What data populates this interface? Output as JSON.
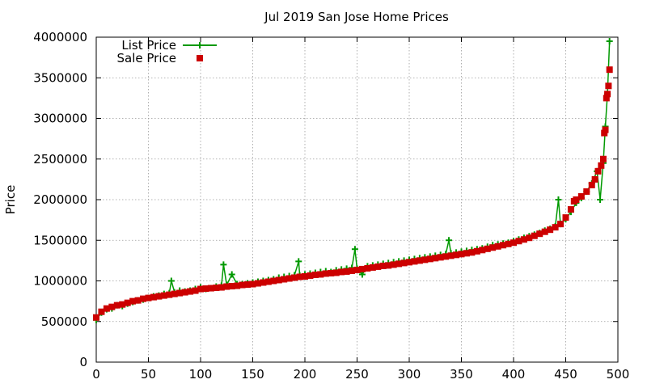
{
  "chart_data": {
    "type": "line",
    "title": "Jul 2019 San Jose Home Prices",
    "xlabel": "",
    "ylabel": "Price",
    "xlim": [
      0,
      500
    ],
    "ylim": [
      0,
      4000000
    ],
    "xticks": [
      0,
      50,
      100,
      150,
      200,
      250,
      300,
      350,
      400,
      450,
      500
    ],
    "yticks": [
      0,
      500000,
      1000000,
      1500000,
      2000000,
      2500000,
      3000000,
      3500000,
      4000000
    ],
    "grid": true,
    "legend_position": "top-left",
    "colors": {
      "list_price": "#009900",
      "sale_price": "#cc0000"
    },
    "series": [
      {
        "name": "List Price",
        "style": "line with plus markers",
        "points": [
          [
            0,
            520000
          ],
          [
            5,
            610000
          ],
          [
            10,
            650000
          ],
          [
            15,
            660000
          ],
          [
            20,
            700000
          ],
          [
            25,
            690000
          ],
          [
            30,
            720000
          ],
          [
            35,
            740000
          ],
          [
            40,
            760000
          ],
          [
            45,
            770000
          ],
          [
            50,
            790000
          ],
          [
            55,
            810000
          ],
          [
            60,
            820000
          ],
          [
            65,
            840000
          ],
          [
            70,
            850000
          ],
          [
            72,
            1000000
          ],
          [
            75,
            860000
          ],
          [
            80,
            880000
          ],
          [
            85,
            870000
          ],
          [
            90,
            880000
          ],
          [
            95,
            900000
          ],
          [
            100,
            920000
          ],
          [
            105,
            900000
          ],
          [
            110,
            910000
          ],
          [
            115,
            930000
          ],
          [
            120,
            940000
          ],
          [
            122,
            1200000
          ],
          [
            125,
            950000
          ],
          [
            130,
            1080000
          ],
          [
            135,
            960000
          ],
          [
            140,
            960000
          ],
          [
            145,
            970000
          ],
          [
            150,
            980000
          ],
          [
            155,
            990000
          ],
          [
            160,
            1000000
          ],
          [
            165,
            1010000
          ],
          [
            170,
            1020000
          ],
          [
            175,
            1040000
          ],
          [
            180,
            1050000
          ],
          [
            185,
            1060000
          ],
          [
            190,
            1070000
          ],
          [
            194,
            1240000
          ],
          [
            195,
            1070000
          ],
          [
            200,
            1080000
          ],
          [
            205,
            1090000
          ],
          [
            210,
            1100000
          ],
          [
            215,
            1110000
          ],
          [
            220,
            1120000
          ],
          [
            225,
            1110000
          ],
          [
            230,
            1130000
          ],
          [
            235,
            1140000
          ],
          [
            240,
            1150000
          ],
          [
            245,
            1160000
          ],
          [
            248,
            1390000
          ],
          [
            250,
            1150000
          ],
          [
            255,
            1080000
          ],
          [
            260,
            1180000
          ],
          [
            265,
            1190000
          ],
          [
            270,
            1200000
          ],
          [
            275,
            1210000
          ],
          [
            280,
            1220000
          ],
          [
            285,
            1230000
          ],
          [
            290,
            1240000
          ],
          [
            295,
            1250000
          ],
          [
            300,
            1260000
          ],
          [
            305,
            1270000
          ],
          [
            310,
            1280000
          ],
          [
            315,
            1290000
          ],
          [
            320,
            1300000
          ],
          [
            325,
            1310000
          ],
          [
            330,
            1320000
          ],
          [
            335,
            1330000
          ],
          [
            338,
            1500000
          ],
          [
            340,
            1340000
          ],
          [
            345,
            1350000
          ],
          [
            350,
            1360000
          ],
          [
            355,
            1370000
          ],
          [
            360,
            1380000
          ],
          [
            365,
            1390000
          ],
          [
            370,
            1400000
          ],
          [
            375,
            1420000
          ],
          [
            380,
            1440000
          ],
          [
            385,
            1450000
          ],
          [
            390,
            1460000
          ],
          [
            395,
            1470000
          ],
          [
            400,
            1490000
          ],
          [
            405,
            1510000
          ],
          [
            410,
            1530000
          ],
          [
            415,
            1550000
          ],
          [
            420,
            1570000
          ],
          [
            425,
            1590000
          ],
          [
            430,
            1620000
          ],
          [
            435,
            1640000
          ],
          [
            440,
            1670000
          ],
          [
            443,
            2000000
          ],
          [
            445,
            1700000
          ],
          [
            450,
            1760000
          ],
          [
            455,
            1850000
          ],
          [
            460,
            1960000
          ],
          [
            465,
            2020000
          ],
          [
            470,
            2100000
          ],
          [
            475,
            2200000
          ],
          [
            480,
            2350000
          ],
          [
            483,
            2000000
          ],
          [
            486,
            2450000
          ],
          [
            488,
            2900000
          ],
          [
            490,
            3300000
          ],
          [
            492,
            3950000
          ]
        ]
      },
      {
        "name": "Sale Price",
        "style": "square markers",
        "points": [
          [
            0,
            550000
          ],
          [
            5,
            620000
          ],
          [
            10,
            660000
          ],
          [
            15,
            680000
          ],
          [
            20,
            700000
          ],
          [
            25,
            710000
          ],
          [
            30,
            730000
          ],
          [
            35,
            750000
          ],
          [
            40,
            760000
          ],
          [
            45,
            780000
          ],
          [
            50,
            790000
          ],
          [
            55,
            800000
          ],
          [
            60,
            810000
          ],
          [
            65,
            820000
          ],
          [
            70,
            830000
          ],
          [
            75,
            840000
          ],
          [
            80,
            850000
          ],
          [
            85,
            860000
          ],
          [
            90,
            870000
          ],
          [
            95,
            880000
          ],
          [
            100,
            900000
          ],
          [
            105,
            905000
          ],
          [
            110,
            910000
          ],
          [
            115,
            915000
          ],
          [
            120,
            920000
          ],
          [
            125,
            930000
          ],
          [
            130,
            935000
          ],
          [
            135,
            940000
          ],
          [
            140,
            950000
          ],
          [
            145,
            955000
          ],
          [
            150,
            960000
          ],
          [
            155,
            970000
          ],
          [
            160,
            980000
          ],
          [
            165,
            990000
          ],
          [
            170,
            1000000
          ],
          [
            175,
            1010000
          ],
          [
            180,
            1020000
          ],
          [
            185,
            1030000
          ],
          [
            190,
            1040000
          ],
          [
            195,
            1050000
          ],
          [
            200,
            1055000
          ],
          [
            205,
            1065000
          ],
          [
            210,
            1075000
          ],
          [
            215,
            1080000
          ],
          [
            220,
            1090000
          ],
          [
            225,
            1095000
          ],
          [
            230,
            1100000
          ],
          [
            235,
            1110000
          ],
          [
            240,
            1115000
          ],
          [
            245,
            1125000
          ],
          [
            250,
            1135000
          ],
          [
            255,
            1145000
          ],
          [
            260,
            1155000
          ],
          [
            265,
            1165000
          ],
          [
            270,
            1175000
          ],
          [
            275,
            1185000
          ],
          [
            280,
            1190000
          ],
          [
            285,
            1200000
          ],
          [
            290,
            1210000
          ],
          [
            295,
            1220000
          ],
          [
            300,
            1230000
          ],
          [
            305,
            1240000
          ],
          [
            310,
            1250000
          ],
          [
            315,
            1260000
          ],
          [
            320,
            1270000
          ],
          [
            325,
            1280000
          ],
          [
            330,
            1290000
          ],
          [
            335,
            1300000
          ],
          [
            340,
            1310000
          ],
          [
            345,
            1320000
          ],
          [
            350,
            1330000
          ],
          [
            355,
            1340000
          ],
          [
            360,
            1350000
          ],
          [
            365,
            1365000
          ],
          [
            370,
            1380000
          ],
          [
            375,
            1395000
          ],
          [
            380,
            1410000
          ],
          [
            385,
            1425000
          ],
          [
            390,
            1440000
          ],
          [
            395,
            1455000
          ],
          [
            400,
            1470000
          ],
          [
            405,
            1490000
          ],
          [
            410,
            1510000
          ],
          [
            415,
            1530000
          ],
          [
            420,
            1555000
          ],
          [
            425,
            1580000
          ],
          [
            430,
            1605000
          ],
          [
            435,
            1630000
          ],
          [
            440,
            1660000
          ],
          [
            445,
            1700000
          ],
          [
            450,
            1780000
          ],
          [
            455,
            1880000
          ],
          [
            458,
            1980000
          ],
          [
            460,
            2000000
          ],
          [
            465,
            2040000
          ],
          [
            470,
            2100000
          ],
          [
            475,
            2180000
          ],
          [
            478,
            2250000
          ],
          [
            481,
            2350000
          ],
          [
            484,
            2420000
          ],
          [
            486,
            2500000
          ],
          [
            487,
            2820000
          ],
          [
            488,
            2860000
          ],
          [
            489,
            3250000
          ],
          [
            490,
            3300000
          ],
          [
            491,
            3400000
          ],
          [
            492,
            3600000
          ]
        ]
      }
    ]
  }
}
